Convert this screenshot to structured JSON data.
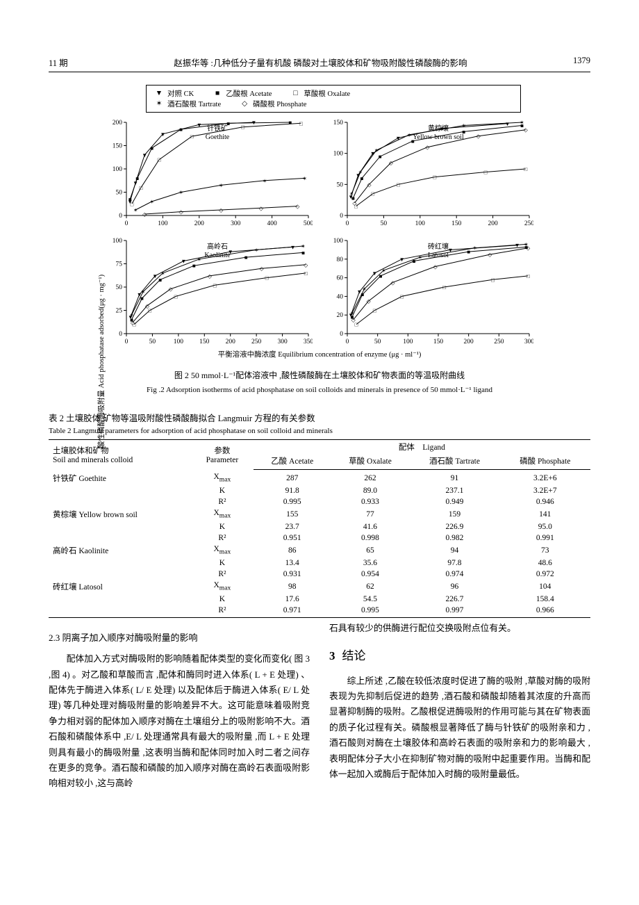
{
  "header": {
    "issue": "11 期",
    "running": "赵振华等 :几种低分子量有机酸 磷酸对土壤胶体和矿物吸附酸性磷酸酶的影响",
    "page": "1379"
  },
  "legend": {
    "items": [
      {
        "marker": "▼",
        "cn": "对照",
        "en": "CK"
      },
      {
        "marker": "■",
        "cn": "乙酸根",
        "en": "Acetate"
      },
      {
        "marker": "□",
        "cn": "草酸根",
        "en": "Oxalate"
      },
      {
        "marker": "✶",
        "cn": "酒石酸根",
        "en": "Tartrate"
      },
      {
        "marker": "◇",
        "cn": "磷酸根",
        "en": "Phosphate"
      }
    ]
  },
  "charts": {
    "ylabel": "酸性磷酸酶吸附量 Acid phosphatase adsorbed(μg · mg⁻¹)",
    "xlabel": "平衡溶液中酶浓度 Equilibrium concentration of enzyme (μg · ml⁻¹)",
    "goethite": {
      "title_cn": "针铁矿",
      "title_en": "Goethite",
      "xlim": [
        0,
        500
      ],
      "xticks": [
        0,
        100,
        200,
        300,
        400,
        500
      ],
      "ylim": [
        0,
        200
      ],
      "yticks": [
        0,
        50,
        100,
        150,
        200
      ],
      "series": {
        "ck": {
          "m": "▼",
          "pts": [
            [
              10,
              30
            ],
            [
              25,
              70
            ],
            [
              50,
              130
            ],
            [
              100,
              175
            ],
            [
              200,
              195
            ],
            [
              350,
              200
            ]
          ]
        },
        "acetate": {
          "m": "■",
          "pts": [
            [
              10,
              35
            ],
            [
              30,
              80
            ],
            [
              70,
              145
            ],
            [
              150,
              185
            ],
            [
              280,
              198
            ],
            [
              450,
              200
            ]
          ]
        },
        "oxalate": {
          "m": "□",
          "pts": [
            [
              15,
              25
            ],
            [
              40,
              60
            ],
            [
              90,
              120
            ],
            [
              180,
              170
            ],
            [
              320,
              190
            ],
            [
              480,
              198
            ]
          ]
        },
        "tartrate": {
          "m": "✶",
          "pts": [
            [
              25,
              12
            ],
            [
              70,
              30
            ],
            [
              150,
              50
            ],
            [
              260,
              65
            ],
            [
              380,
              75
            ],
            [
              490,
              80
            ]
          ]
        },
        "phosphate": {
          "m": "◇",
          "pts": [
            [
              50,
              3
            ],
            [
              150,
              8
            ],
            [
              260,
              12
            ],
            [
              370,
              16
            ],
            [
              470,
              20
            ]
          ]
        }
      }
    },
    "yellow": {
      "title_cn": "黄棕壤",
      "title_en": "Yellow brown soil",
      "xlim": [
        0,
        250
      ],
      "xticks": [
        0,
        50,
        100,
        150,
        200,
        250
      ],
      "ylim": [
        0,
        150
      ],
      "yticks": [
        0,
        50,
        100,
        150
      ],
      "series": {
        "ck": {
          "m": "▼",
          "pts": [
            [
              5,
              30
            ],
            [
              15,
              65
            ],
            [
              35,
              100
            ],
            [
              70,
              125
            ],
            [
              130,
              140
            ],
            [
              220,
              148
            ]
          ]
        },
        "acetate": {
          "m": "■",
          "pts": [
            [
              8,
              28
            ],
            [
              20,
              60
            ],
            [
              45,
              95
            ],
            [
              90,
              120
            ],
            [
              160,
              135
            ],
            [
              240,
              145
            ]
          ]
        },
        "oxalate": {
          "m": "□",
          "pts": [
            [
              12,
              15
            ],
            [
              35,
              35
            ],
            [
              70,
              50
            ],
            [
              120,
              62
            ],
            [
              190,
              70
            ],
            [
              245,
              75
            ]
          ]
        },
        "tartrate": {
          "m": "✶",
          "pts": [
            [
              6,
              35
            ],
            [
              18,
              70
            ],
            [
              40,
              105
            ],
            [
              85,
              130
            ],
            [
              160,
              145
            ],
            [
              240,
              150
            ]
          ]
        },
        "phosphate": {
          "m": "◇",
          "pts": [
            [
              10,
              20
            ],
            [
              30,
              50
            ],
            [
              60,
              85
            ],
            [
              110,
              110
            ],
            [
              180,
              128
            ],
            [
              245,
              138
            ]
          ]
        }
      }
    },
    "kaolinite": {
      "title_cn": "高岭石",
      "title_en": "Kaolinite",
      "xlim": [
        0,
        350
      ],
      "xticks": [
        0,
        50,
        100,
        150,
        200,
        250,
        300,
        350
      ],
      "ylim": [
        0,
        100
      ],
      "yticks": [
        0,
        25,
        50,
        75,
        100
      ],
      "series": {
        "ck": {
          "m": "▼",
          "pts": [
            [
              8,
              18
            ],
            [
              25,
              42
            ],
            [
              55,
              62
            ],
            [
              110,
              78
            ],
            [
              200,
              88
            ],
            [
              320,
              93
            ]
          ]
        },
        "acetate": {
          "m": "■",
          "pts": [
            [
              10,
              15
            ],
            [
              30,
              38
            ],
            [
              65,
              58
            ],
            [
              130,
              73
            ],
            [
              230,
              82
            ],
            [
              340,
              87
            ]
          ]
        },
        "oxalate": {
          "m": "□",
          "pts": [
            [
              15,
              10
            ],
            [
              45,
              25
            ],
            [
              95,
              40
            ],
            [
              170,
              52
            ],
            [
              270,
              60
            ],
            [
              345,
              65
            ]
          ]
        },
        "tartrate": {
          "m": "✶",
          "pts": [
            [
              10,
              20
            ],
            [
              32,
              45
            ],
            [
              70,
              65
            ],
            [
              140,
              80
            ],
            [
              250,
              90
            ],
            [
              340,
              94
            ]
          ]
        },
        "phosphate": {
          "m": "◇",
          "pts": [
            [
              12,
              12
            ],
            [
              40,
              30
            ],
            [
              85,
              48
            ],
            [
              160,
              62
            ],
            [
              260,
              70
            ],
            [
              345,
              74
            ]
          ]
        }
      }
    },
    "latosol": {
      "title_cn": "砖红壤",
      "title_en": "Latosol",
      "xlim": [
        0,
        300
      ],
      "xticks": [
        0,
        50,
        100,
        150,
        200,
        250,
        300
      ],
      "ylim": [
        0,
        100
      ],
      "yticks": [
        0,
        20,
        40,
        60,
        80,
        100
      ],
      "series": {
        "ck": {
          "m": "▼",
          "pts": [
            [
              6,
              20
            ],
            [
              20,
              45
            ],
            [
              45,
              65
            ],
            [
              90,
              80
            ],
            [
              170,
              90
            ],
            [
              280,
              95
            ]
          ]
        },
        "acetate": {
          "m": "■",
          "pts": [
            [
              8,
              18
            ],
            [
              25,
              42
            ],
            [
              55,
              62
            ],
            [
              110,
              78
            ],
            [
              200,
              88
            ],
            [
              295,
              93
            ]
          ]
        },
        "oxalate": {
          "m": "□",
          "pts": [
            [
              15,
              10
            ],
            [
              45,
              25
            ],
            [
              90,
              40
            ],
            [
              160,
              50
            ],
            [
              240,
              58
            ],
            [
              298,
              62
            ]
          ]
        },
        "tartrate": {
          "m": "✶",
          "pts": [
            [
              8,
              22
            ],
            [
              28,
              48
            ],
            [
              60,
              68
            ],
            [
              120,
              82
            ],
            [
              210,
              92
            ],
            [
              295,
              96
            ]
          ]
        },
        "phosphate": {
          "m": "◇",
          "pts": [
            [
              10,
              15
            ],
            [
              35,
              35
            ],
            [
              75,
              55
            ],
            [
              145,
              72
            ],
            [
              235,
              85
            ],
            [
              298,
              92
            ]
          ]
        }
      }
    }
  },
  "fig2": {
    "cn": "图 2  50 mmol·L⁻¹配体溶液中 ,酸性磷酸酶在土壤胶体和矿物表面的等温吸附曲线",
    "en": "Fig .2  Adsorption isotherms of acid phosphatase on soil colloids and minerals in presence of 50 mmol·L⁻¹ ligand"
  },
  "table2": {
    "cap_cn": "表 2  土壤胶体 矿物等温吸附酸性磷酸酶拟合 Langmuir 方程的有关参数",
    "cap_en": "Table 2  Langmuir parameters for adsorption of acid phosphatase on soil colloid and minerals",
    "head": {
      "col1_cn": "土壤胶体和矿物",
      "col1_en": "Soil and minerals colloid",
      "col2_cn": "参数",
      "col2_en": "Parameter",
      "ligand_cn": "配体",
      "ligand_en": "Ligand",
      "ligands": [
        "乙酸 Acetate",
        "草酸 Oxalate",
        "酒石酸 Tartrate",
        "磷酸 Phosphate"
      ]
    },
    "rows": [
      {
        "name": "针铁矿 Goethite",
        "p": "Xmax",
        "v": [
          "287",
          "262",
          "91",
          "3.2E+6"
        ]
      },
      {
        "name": "",
        "p": "K",
        "v": [
          "91.8",
          "89.0",
          "237.1",
          "3.2E+7"
        ]
      },
      {
        "name": "",
        "p": "R²",
        "v": [
          "0.995",
          "0.933",
          "0.949",
          "0.946"
        ]
      },
      {
        "name": "黄棕壤 Yellow brown soil",
        "p": "Xmax",
        "v": [
          "155",
          "77",
          "159",
          "141"
        ]
      },
      {
        "name": "",
        "p": "K",
        "v": [
          "23.7",
          "41.6",
          "226.9",
          "95.0"
        ]
      },
      {
        "name": "",
        "p": "R²",
        "v": [
          "0.951",
          "0.998",
          "0.982",
          "0.991"
        ]
      },
      {
        "name": "高岭石 Kaolinite",
        "p": "Xmax",
        "v": [
          "86",
          "65",
          "94",
          "73"
        ]
      },
      {
        "name": "",
        "p": "K",
        "v": [
          "13.4",
          "35.6",
          "97.8",
          "48.6"
        ]
      },
      {
        "name": "",
        "p": "R²",
        "v": [
          "0.931",
          "0.954",
          "0.974",
          "0.972"
        ]
      },
      {
        "name": "砖红壤 Latosol",
        "p": "Xmax",
        "v": [
          "98",
          "62",
          "96",
          "104"
        ]
      },
      {
        "name": "",
        "p": "K",
        "v": [
          "17.6",
          "54.5",
          "226.7",
          "158.4"
        ]
      },
      {
        "name": "",
        "p": "R²",
        "v": [
          "0.971",
          "0.995",
          "0.997",
          "0.966"
        ]
      }
    ]
  },
  "s23": {
    "title": "2.3  阴离子加入顺序对酶吸附量的影响",
    "p1": "配体加入方式对酶吸附的影响随着配体类型的变化而变化( 图 3 ,图 4) 。对乙酸和草酸而言 ,配体和酶同时进入体系( L + E 处理) 、配体先于酶进入体系( L/ E 处理) 以及配体后于酶进入体系( E/ L 处理) 等几种处理对酶吸附量的影响差异不大。这可能意味着吸附竞争力相对弱的配体加入顺序对酶在土壤组分上的吸附影响不大。酒石酸和磷酸体系中 ,E/ L 处理通常具有最大的吸附量 ,而 L + E 处理则具有最小的酶吸附量 ,这表明当酶和配体同时加入时二者之间存在更多的竞争。酒石酸和磷酸的加入顺序对酶在高岭石表面吸附影响相对较小 ,这与高岭",
    "p2": "石具有较少的供酶进行配位交换吸附点位有关。"
  },
  "s3": {
    "num": "3",
    "title": "结论",
    "p": "综上所述 ,乙酸在较低浓度时促进了酶的吸附 ,草酸对酶的吸附表现为先抑制后促进的趋势 ,酒石酸和磷酸却随着其浓度的升高而显著抑制酶的吸附。乙酸根促进酶吸附的作用可能与其在矿物表面的质子化过程有关。磷酸根显著降低了酶与针铁矿的吸附亲和力 ,酒石酸则对酶在土壤胶体和高岭石表面的吸附亲和力的影响最大 ,表明配体分子大小在抑制矿物对酶的吸附中起重要作用。当酶和配体一起加入或酶后于配体加入时酶的吸附量最低。"
  }
}
